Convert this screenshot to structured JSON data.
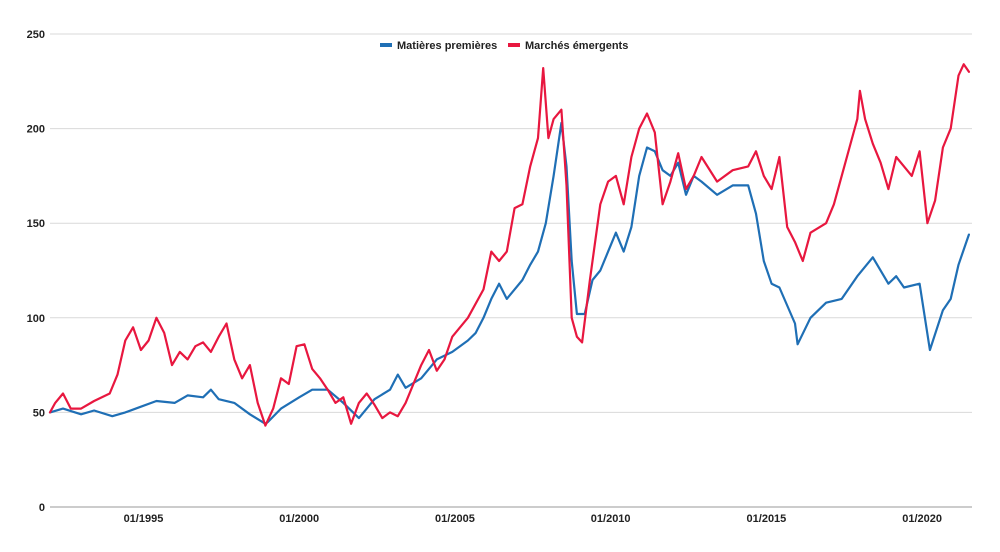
{
  "chart_data": {
    "type": "line",
    "title": "",
    "xlabel": "",
    "ylabel": "",
    "ylim": [
      0,
      250
    ],
    "yticks": [
      "0",
      "50",
      "100",
      "150",
      "200",
      "250"
    ],
    "xticks": [
      "01/1995",
      "01/2000",
      "01/2005",
      "01/2010",
      "01/2015",
      "01/2020"
    ],
    "grid": true,
    "legend_position": "top-center",
    "series": [
      {
        "name": "Matières premières",
        "color": "#1f6fb5",
        "points": [
          [
            "1992-01",
            50
          ],
          [
            "1992-06",
            52
          ],
          [
            "1993-01",
            49
          ],
          [
            "1993-06",
            51
          ],
          [
            "1994-01",
            48
          ],
          [
            "1994-06",
            50
          ],
          [
            "1994-12",
            53
          ],
          [
            "1995-06",
            56
          ],
          [
            "1996-01",
            55
          ],
          [
            "1996-06",
            59
          ],
          [
            "1996-12",
            58
          ],
          [
            "1997-03",
            62
          ],
          [
            "1997-06",
            57
          ],
          [
            "1997-12",
            55
          ],
          [
            "1998-06",
            49
          ],
          [
            "1998-12",
            44
          ],
          [
            "1999-01",
            45
          ],
          [
            "1999-06",
            52
          ],
          [
            "2000-01",
            58
          ],
          [
            "2000-06",
            62
          ],
          [
            "2000-12",
            62
          ],
          [
            "2001-06",
            55
          ],
          [
            "2001-12",
            47
          ],
          [
            "2002-06",
            57
          ],
          [
            "2002-12",
            62
          ],
          [
            "2003-03",
            70
          ],
          [
            "2003-06",
            63
          ],
          [
            "2003-12",
            68
          ],
          [
            "2004-06",
            78
          ],
          [
            "2004-12",
            82
          ],
          [
            "2005-06",
            88
          ],
          [
            "2005-09",
            92
          ],
          [
            "2005-12",
            100
          ],
          [
            "2006-03",
            110
          ],
          [
            "2006-06",
            118
          ],
          [
            "2006-09",
            110
          ],
          [
            "2006-12",
            115
          ],
          [
            "2007-03",
            120
          ],
          [
            "2007-06",
            128
          ],
          [
            "2007-09",
            135
          ],
          [
            "2007-12",
            150
          ],
          [
            "2008-03",
            175
          ],
          [
            "2008-06",
            203
          ],
          [
            "2008-08",
            180
          ],
          [
            "2008-10",
            130
          ],
          [
            "2008-12",
            102
          ],
          [
            "2009-03",
            102
          ],
          [
            "2009-06",
            120
          ],
          [
            "2009-09",
            125
          ],
          [
            "2009-12",
            135
          ],
          [
            "2010-03",
            145
          ],
          [
            "2010-06",
            135
          ],
          [
            "2010-09",
            148
          ],
          [
            "2010-12",
            175
          ],
          [
            "2011-03",
            190
          ],
          [
            "2011-06",
            188
          ],
          [
            "2011-09",
            178
          ],
          [
            "2011-12",
            175
          ],
          [
            "2012-03",
            182
          ],
          [
            "2012-06",
            165
          ],
          [
            "2012-09",
            175
          ],
          [
            "2012-12",
            172
          ],
          [
            "2013-06",
            165
          ],
          [
            "2013-12",
            170
          ],
          [
            "2014-06",
            170
          ],
          [
            "2014-09",
            155
          ],
          [
            "2014-12",
            130
          ],
          [
            "2015-03",
            118
          ],
          [
            "2015-06",
            116
          ],
          [
            "2015-12",
            97
          ],
          [
            "2016-01",
            86
          ],
          [
            "2016-06",
            100
          ],
          [
            "2016-12",
            108
          ],
          [
            "2017-06",
            110
          ],
          [
            "2017-12",
            122
          ],
          [
            "2018-06",
            132
          ],
          [
            "2018-12",
            118
          ],
          [
            "2019-03",
            122
          ],
          [
            "2019-06",
            116
          ],
          [
            "2019-12",
            118
          ],
          [
            "2020-04",
            83
          ],
          [
            "2020-09",
            104
          ],
          [
            "2020-12",
            110
          ],
          [
            "2021-03",
            128
          ],
          [
            "2021-06",
            140
          ],
          [
            "2021-07",
            144
          ]
        ]
      },
      {
        "name": "Marchés émergents",
        "color": "#e8173f",
        "points": [
          [
            "1992-01",
            50
          ],
          [
            "1992-03",
            55
          ],
          [
            "1992-06",
            60
          ],
          [
            "1992-09",
            52
          ],
          [
            "1993-01",
            52
          ],
          [
            "1993-06",
            56
          ],
          [
            "1993-12",
            60
          ],
          [
            "1994-03",
            70
          ],
          [
            "1994-06",
            88
          ],
          [
            "1994-09",
            95
          ],
          [
            "1994-12",
            83
          ],
          [
            "1995-03",
            88
          ],
          [
            "1995-06",
            100
          ],
          [
            "1995-09",
            92
          ],
          [
            "1995-12",
            75
          ],
          [
            "1996-03",
            82
          ],
          [
            "1996-06",
            78
          ],
          [
            "1996-09",
            85
          ],
          [
            "1996-12",
            87
          ],
          [
            "1997-03",
            82
          ],
          [
            "1997-06",
            90
          ],
          [
            "1997-09",
            97
          ],
          [
            "1997-12",
            78
          ],
          [
            "1998-03",
            68
          ],
          [
            "1998-06",
            75
          ],
          [
            "1998-09",
            55
          ],
          [
            "1998-12",
            43
          ],
          [
            "1999-03",
            52
          ],
          [
            "1999-06",
            68
          ],
          [
            "1999-09",
            65
          ],
          [
            "1999-12",
            85
          ],
          [
            "2000-03",
            86
          ],
          [
            "2000-06",
            73
          ],
          [
            "2000-09",
            68
          ],
          [
            "2000-12",
            62
          ],
          [
            "2001-03",
            55
          ],
          [
            "2001-06",
            58
          ],
          [
            "2001-09",
            44
          ],
          [
            "2001-12",
            55
          ],
          [
            "2002-03",
            60
          ],
          [
            "2002-06",
            54
          ],
          [
            "2002-09",
            47
          ],
          [
            "2002-12",
            50
          ],
          [
            "2003-03",
            48
          ],
          [
            "2003-06",
            55
          ],
          [
            "2003-09",
            65
          ],
          [
            "2003-12",
            75
          ],
          [
            "2004-03",
            83
          ],
          [
            "2004-06",
            72
          ],
          [
            "2004-09",
            78
          ],
          [
            "2004-12",
            90
          ],
          [
            "2005-06",
            100
          ],
          [
            "2005-12",
            115
          ],
          [
            "2006-03",
            135
          ],
          [
            "2006-06",
            130
          ],
          [
            "2006-09",
            135
          ],
          [
            "2006-12",
            158
          ],
          [
            "2007-03",
            160
          ],
          [
            "2007-06",
            180
          ],
          [
            "2007-09",
            195
          ],
          [
            "2007-11",
            232
          ],
          [
            "2008-01",
            195
          ],
          [
            "2008-03",
            205
          ],
          [
            "2008-06",
            210
          ],
          [
            "2008-08",
            170
          ],
          [
            "2008-10",
            100
          ],
          [
            "2008-12",
            90
          ],
          [
            "2009-02",
            87
          ],
          [
            "2009-05",
            120
          ],
          [
            "2009-09",
            160
          ],
          [
            "2009-12",
            172
          ],
          [
            "2010-03",
            175
          ],
          [
            "2010-06",
            160
          ],
          [
            "2010-09",
            185
          ],
          [
            "2010-12",
            200
          ],
          [
            "2011-03",
            208
          ],
          [
            "2011-06",
            198
          ],
          [
            "2011-09",
            160
          ],
          [
            "2011-12",
            172
          ],
          [
            "2012-03",
            187
          ],
          [
            "2012-06",
            168
          ],
          [
            "2012-09",
            175
          ],
          [
            "2012-12",
            185
          ],
          [
            "2013-06",
            172
          ],
          [
            "2013-12",
            178
          ],
          [
            "2014-06",
            180
          ],
          [
            "2014-09",
            188
          ],
          [
            "2014-12",
            175
          ],
          [
            "2015-03",
            168
          ],
          [
            "2015-06",
            185
          ],
          [
            "2015-09",
            148
          ],
          [
            "2015-12",
            140
          ],
          [
            "2016-03",
            130
          ],
          [
            "2016-06",
            145
          ],
          [
            "2016-12",
            150
          ],
          [
            "2017-03",
            160
          ],
          [
            "2017-06",
            175
          ],
          [
            "2017-09",
            190
          ],
          [
            "2017-12",
            205
          ],
          [
            "2018-01",
            220
          ],
          [
            "2018-03",
            205
          ],
          [
            "2018-06",
            192
          ],
          [
            "2018-09",
            182
          ],
          [
            "2018-12",
            168
          ],
          [
            "2019-03",
            185
          ],
          [
            "2019-06",
            180
          ],
          [
            "2019-09",
            175
          ],
          [
            "2019-12",
            188
          ],
          [
            "2020-03",
            150
          ],
          [
            "2020-06",
            162
          ],
          [
            "2020-09",
            190
          ],
          [
            "2020-12",
            200
          ],
          [
            "2021-03",
            228
          ],
          [
            "2021-05",
            234
          ],
          [
            "2021-07",
            230
          ]
        ]
      }
    ]
  }
}
